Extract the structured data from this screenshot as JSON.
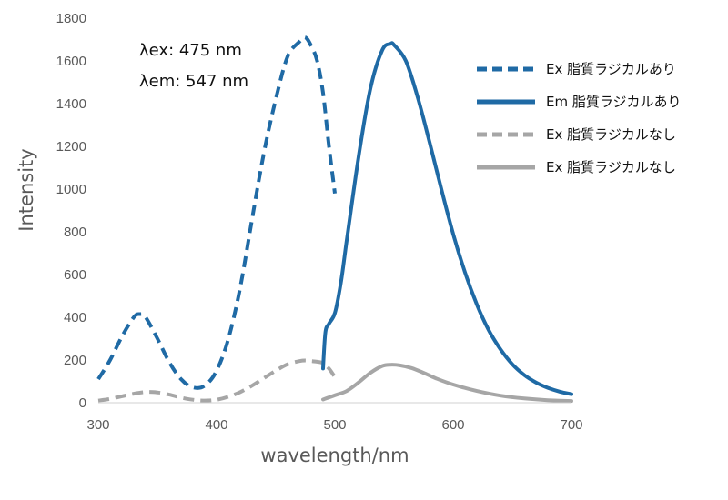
{
  "chart_data": {
    "type": "line",
    "xlabel": "wavelength/nm",
    "ylabel": "Intensity",
    "xlim": [
      300,
      700
    ],
    "ylim": [
      0,
      1800
    ],
    "x_ticks": [
      300,
      400,
      500,
      600,
      700
    ],
    "y_ticks": [
      0,
      200,
      400,
      600,
      800,
      1000,
      1200,
      1400,
      1600,
      1800
    ],
    "grid": false,
    "legend_position": "right",
    "annotations": [
      "λex: 475 nm",
      "λem: 547 nm"
    ],
    "series": [
      {
        "name": "Ex 脂質ラジカルあり",
        "color": "#1f6aa5",
        "dash": "dashed",
        "x": [
          300,
          310,
          320,
          330,
          335,
          340,
          350,
          360,
          370,
          380,
          390,
          400,
          410,
          420,
          430,
          440,
          450,
          460,
          470,
          475,
          480,
          485,
          490,
          495,
          500
        ],
        "y": [
          110,
          200,
          310,
          400,
          415,
          400,
          300,
          190,
          110,
          72,
          80,
          150,
          300,
          540,
          860,
          1170,
          1420,
          1620,
          1690,
          1710,
          1670,
          1600,
          1450,
          1200,
          980
        ]
      },
      {
        "name": "Em 脂質ラジカルあり",
        "color": "#1f6aa5",
        "dash": "solid",
        "x": [
          490,
          492,
          495,
          500,
          505,
          510,
          520,
          530,
          540,
          547,
          550,
          560,
          570,
          580,
          590,
          600,
          610,
          620,
          630,
          640,
          650,
          660,
          670,
          680,
          690,
          700
        ],
        "y": [
          160,
          330,
          370,
          420,
          560,
          760,
          1150,
          1470,
          1650,
          1680,
          1675,
          1600,
          1430,
          1220,
          1000,
          790,
          610,
          460,
          340,
          250,
          180,
          130,
          95,
          70,
          52,
          40
        ]
      },
      {
        "name": "Ex 脂質ラジカルなし",
        "color": "#a6a6a6",
        "dash": "dashed",
        "x": [
          300,
          310,
          320,
          330,
          340,
          350,
          360,
          370,
          380,
          390,
          400,
          410,
          420,
          430,
          440,
          450,
          460,
          470,
          475,
          480,
          485,
          490,
          495,
          500
        ],
        "y": [
          10,
          18,
          30,
          42,
          50,
          48,
          38,
          24,
          14,
          10,
          14,
          28,
          50,
          80,
          115,
          150,
          180,
          195,
          198,
          195,
          192,
          185,
          160,
          120
        ]
      },
      {
        "name": "Ex 脂質ラジカルなし",
        "color": "#a6a6a6",
        "dash": "solid",
        "x": [
          490,
          500,
          510,
          520,
          530,
          540,
          547,
          555,
          565,
          575,
          585,
          600,
          620,
          640,
          660,
          680,
          700
        ],
        "y": [
          15,
          35,
          55,
          95,
          140,
          172,
          178,
          175,
          162,
          140,
          115,
          85,
          55,
          33,
          20,
          12,
          8
        ]
      }
    ]
  }
}
